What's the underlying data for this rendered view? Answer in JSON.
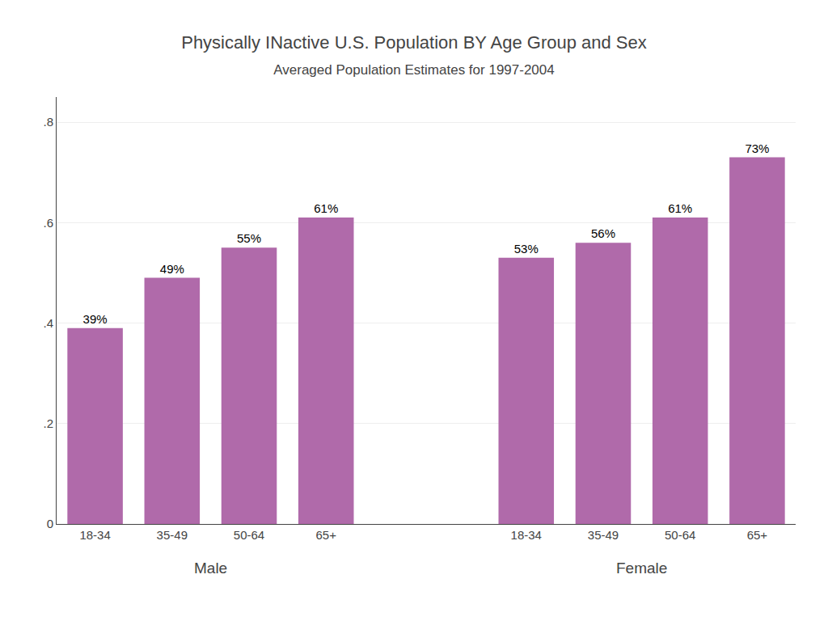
{
  "chart_data": {
    "type": "bar",
    "title": "Physically INactive U.S. Population BY Age Group and Sex",
    "subtitle": "Averaged Population Estimates for 1997-2004",
    "categories": [
      "18-34",
      "35-49",
      "50-64",
      "65+",
      "18-34",
      "35-49",
      "50-64",
      "65+"
    ],
    "annotations": [
      "Male",
      "Female"
    ],
    "values": [
      0.39,
      0.49,
      0.55,
      0.61,
      0.53,
      0.56,
      0.61,
      0.73
    ],
    "value_labels": [
      "39%",
      "49%",
      "55%",
      "61%",
      "53%",
      "56%",
      "61%",
      "73%"
    ],
    "data_labels": true,
    "color": "#b06aaa",
    "ylim": [
      0,
      0.85
    ],
    "yticks": [
      0,
      {
        "value": 0.2,
        "label": ".2"
      },
      {
        "value": 0.4,
        "label": ".4"
      },
      {
        "value": 0.6,
        "label": ".6"
      },
      {
        "value": 0.8,
        "label": ".8"
      }
    ],
    "grid": true
  }
}
